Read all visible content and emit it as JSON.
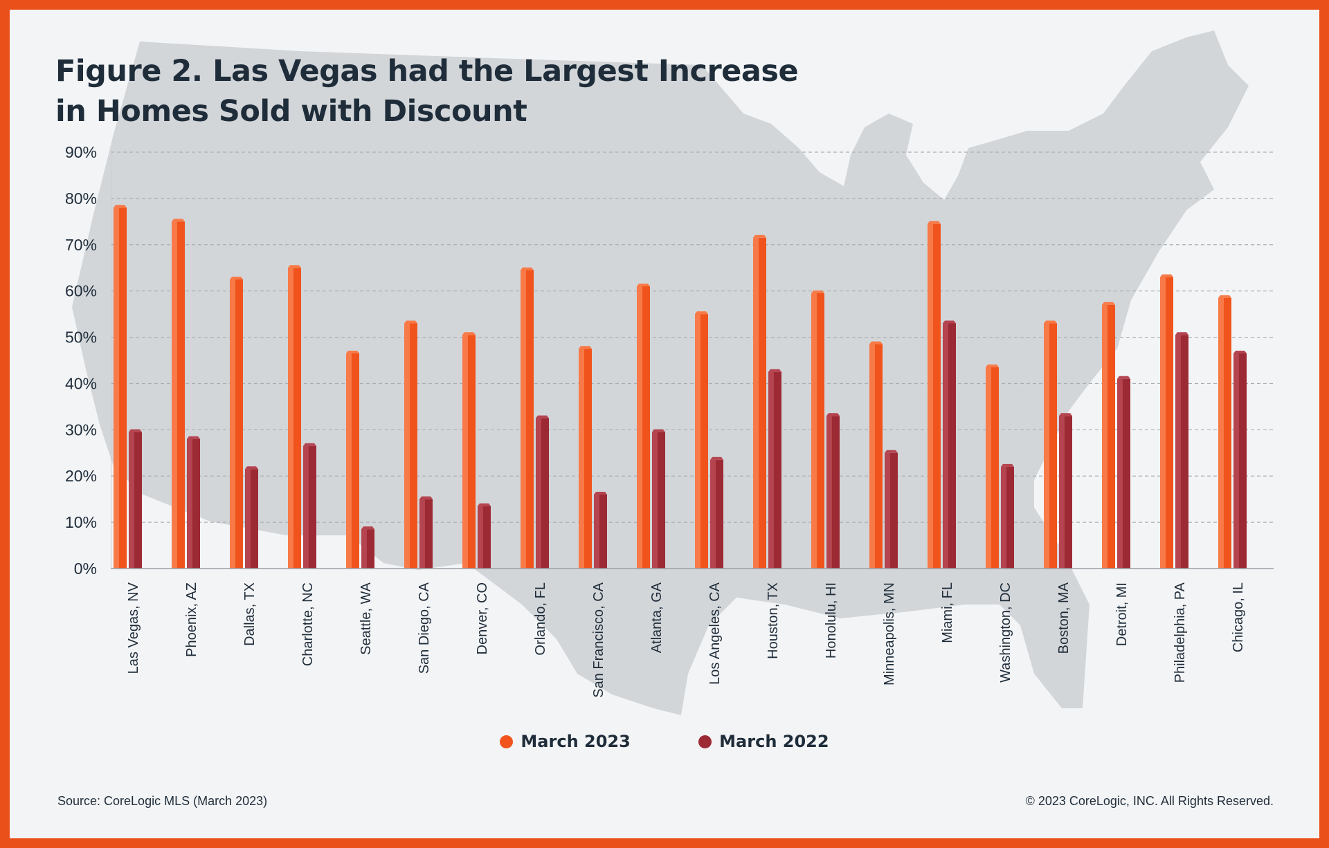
{
  "title_lines": [
    "Figure 2. Las Vegas had the Largest Increase",
    "in Homes Sold with Discount"
  ],
  "source": "Source: CoreLogic MLS (March 2023)",
  "copyright": "© 2023 CoreLogic, INC. All Rights Reserved.",
  "colors": {
    "march_2023": "#f0541c",
    "march_2022": "#9c2a35",
    "frame": "#e9501a",
    "map": "#d3d6d9",
    "text": "#1f2d3a"
  },
  "chart_data": {
    "type": "bar",
    "title": "Figure 2. Las Vegas had the Largest Increase in Homes Sold with Discount",
    "categories": [
      "Las Vegas, NV",
      "Phoenix, AZ",
      "Dallas, TX",
      "Charlotte, NC",
      "Seattle, WA",
      "San Diego, CA",
      "Denver, CO",
      "Orlando, FL",
      "San Francisco, CA",
      "Atlanta, GA",
      "Los Angeles, CA",
      "Houston, TX",
      "Honolulu, HI",
      "Minneapolis, MN",
      "Miami, FL",
      "Washington, DC",
      "Boston, MA",
      "Detroit, MI",
      "Philadelphia, PA",
      "Chicago, IL"
    ],
    "series": [
      {
        "name": "March 2023",
        "color": "#f0541c",
        "values": [
          78,
          75,
          62.5,
          65,
          46.5,
          53,
          50.5,
          64.5,
          47.5,
          61,
          55,
          71.5,
          59.5,
          48.5,
          74.5,
          43.5,
          53,
          57,
          63,
          58.5
        ]
      },
      {
        "name": "March 2022",
        "color": "#9c2a35",
        "values": [
          29.5,
          28,
          21.5,
          26.5,
          8.5,
          15,
          13.5,
          32.5,
          16,
          29.5,
          23.5,
          42.5,
          33,
          25,
          53,
          22,
          33,
          41,
          50.5,
          46.5
        ]
      }
    ],
    "y_ticks": [
      "0%",
      "10%",
      "20%",
      "30%",
      "40%",
      "50%",
      "60%",
      "70%",
      "80%",
      "90%"
    ],
    "ylim": [
      0,
      90
    ],
    "grid": true,
    "legend_position": "bottom-center"
  }
}
